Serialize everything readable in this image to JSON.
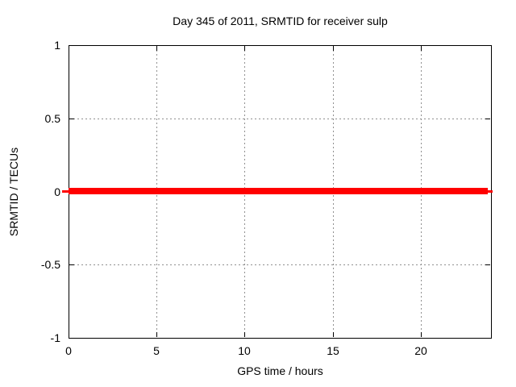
{
  "chart_data": {
    "type": "line",
    "title": "Day 345 of 2011, SRMTID for receiver sulp",
    "xlabel": "GPS time / hours",
    "ylabel": "SRMTID / TECUs",
    "xlim": [
      0,
      24
    ],
    "ylim": [
      -1,
      1
    ],
    "x_ticks": [
      0,
      5,
      10,
      15,
      20
    ],
    "y_ticks": [
      1,
      0.5,
      0,
      -0.5,
      -1
    ],
    "grid": true,
    "legend": "none",
    "series": [
      {
        "name": "SRMTID",
        "color": "#ff0000",
        "style": "thick solid horizontal line",
        "x": [
          0,
          23.8
        ],
        "y": [
          0,
          0
        ],
        "description": "SRMTID is constant at 0 TECUs for the entire day (flat red line at y=0)"
      }
    ],
    "colors": {
      "background": "#ffffff",
      "border": "#000000",
      "grid": "#909090",
      "text": "#000000"
    }
  }
}
